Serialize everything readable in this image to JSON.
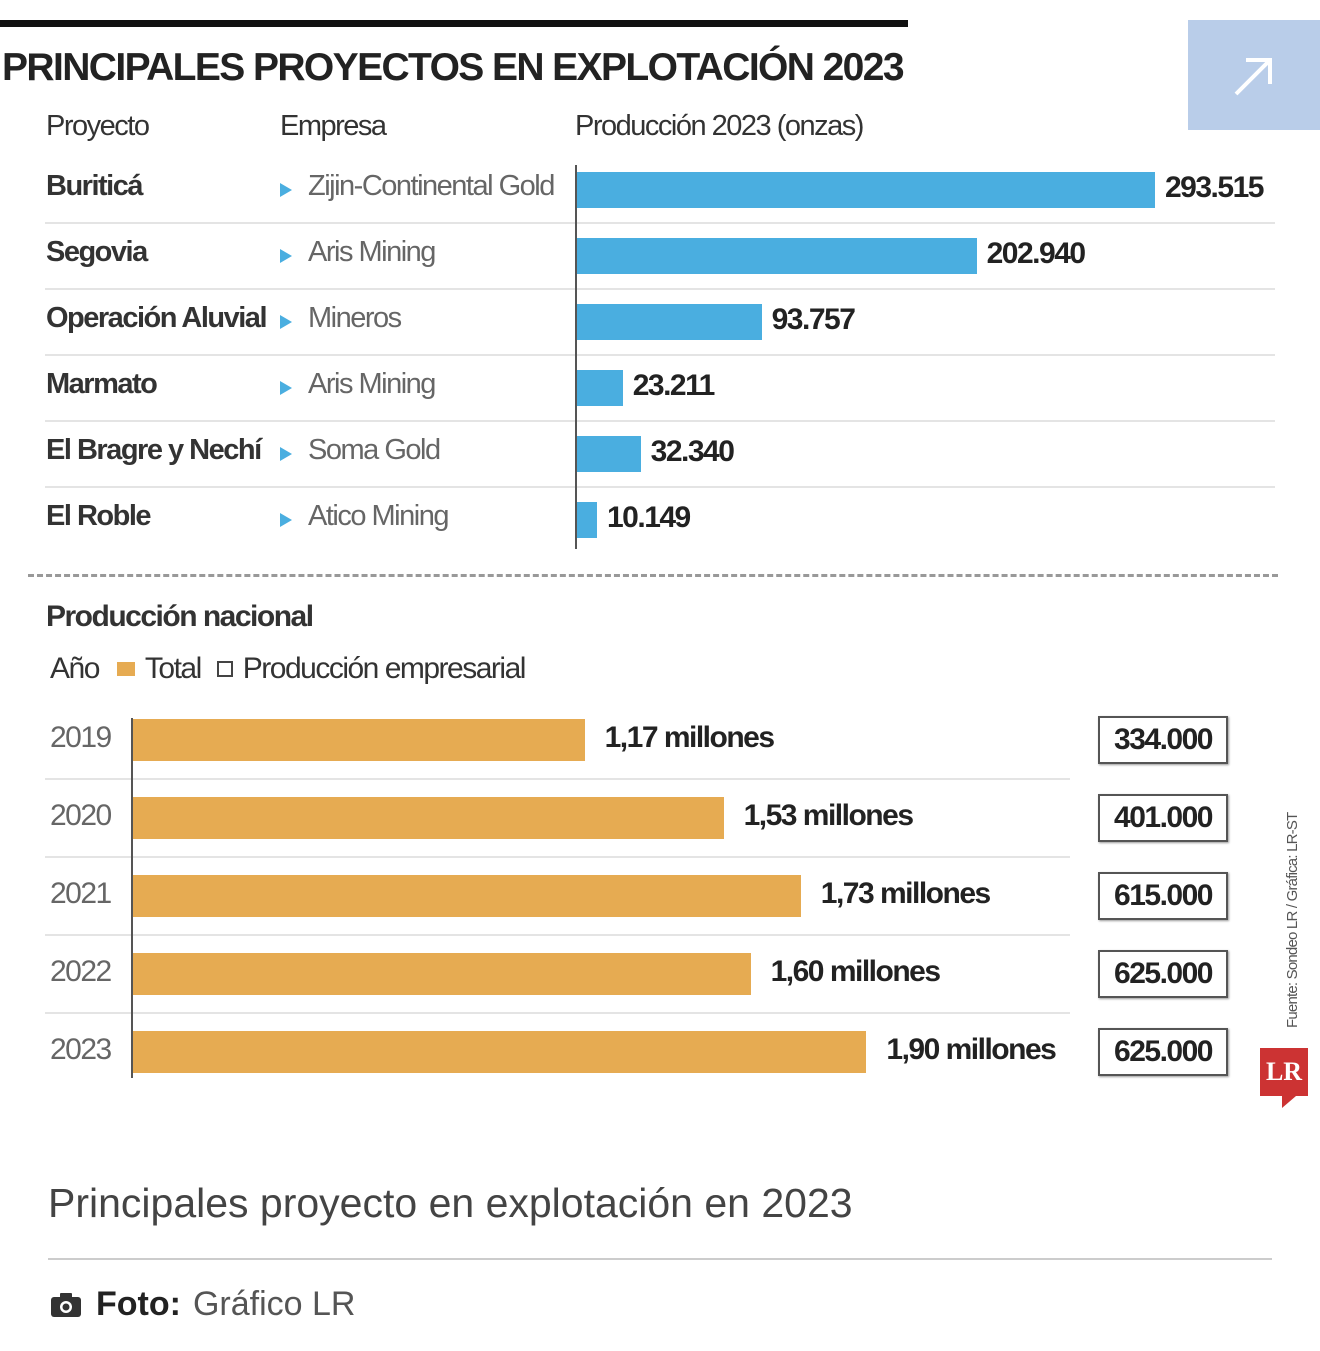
{
  "chart_data": [
    {
      "type": "bar",
      "title": "PRINCIPALES PROYECTOS EN EXPLOTACIÓN 2023",
      "columns": {
        "project": "Proyecto",
        "company": "Empresa",
        "production": "Producción 2023 (onzas)"
      },
      "rows": [
        {
          "project": "Buriticá",
          "company": "Zijin-Continental Gold",
          "value": 293515,
          "label": "293.515"
        },
        {
          "project": "Segovia",
          "company": "Aris Mining",
          "value": 202940,
          "label": "202.940"
        },
        {
          "project": "Operación Aluvial",
          "company": "Mineros",
          "value": 93757,
          "label": "93.757"
        },
        {
          "project": "Marmato",
          "company": "Aris Mining",
          "value": 23211,
          "label": "23.211"
        },
        {
          "project": "El Bragre y Nechí",
          "company": "Soma Gold",
          "value": 32340,
          "label": "32.340"
        },
        {
          "project": "El Roble",
          "company": "Atico Mining",
          "value": 10149,
          "label": "10.149"
        }
      ],
      "bar_color": "#4aaee0"
    },
    {
      "type": "bar",
      "title": "Producción nacional",
      "legend": {
        "year": "Año",
        "total": "Total",
        "empresarial": "Producción empresarial"
      },
      "rows": [
        {
          "year": "2019",
          "total": 1.17,
          "total_label": "1,17 millones",
          "empresarial": "334.000"
        },
        {
          "year": "2020",
          "total": 1.53,
          "total_label": "1,53 millones",
          "empresarial": "401.000"
        },
        {
          "year": "2021",
          "total": 1.73,
          "total_label": "1,73 millones",
          "empresarial": "615.000"
        },
        {
          "year": "2022",
          "total": 1.6,
          "total_label": "1,60 millones",
          "empresarial": "625.000"
        },
        {
          "year": "2023",
          "total": 1.9,
          "total_label": "1,90 millones",
          "empresarial": "625.000"
        }
      ],
      "bar_color": "#e6ab52"
    }
  ],
  "source": "Fuente: Sondeo LR / Gráfica: LR-ST",
  "logo": "LR",
  "caption": "Principales proyecto en explotación en 2023",
  "credit": {
    "label": "Foto:",
    "value": "Gráfico LR"
  },
  "expand_icon": "arrow-up-right-icon"
}
